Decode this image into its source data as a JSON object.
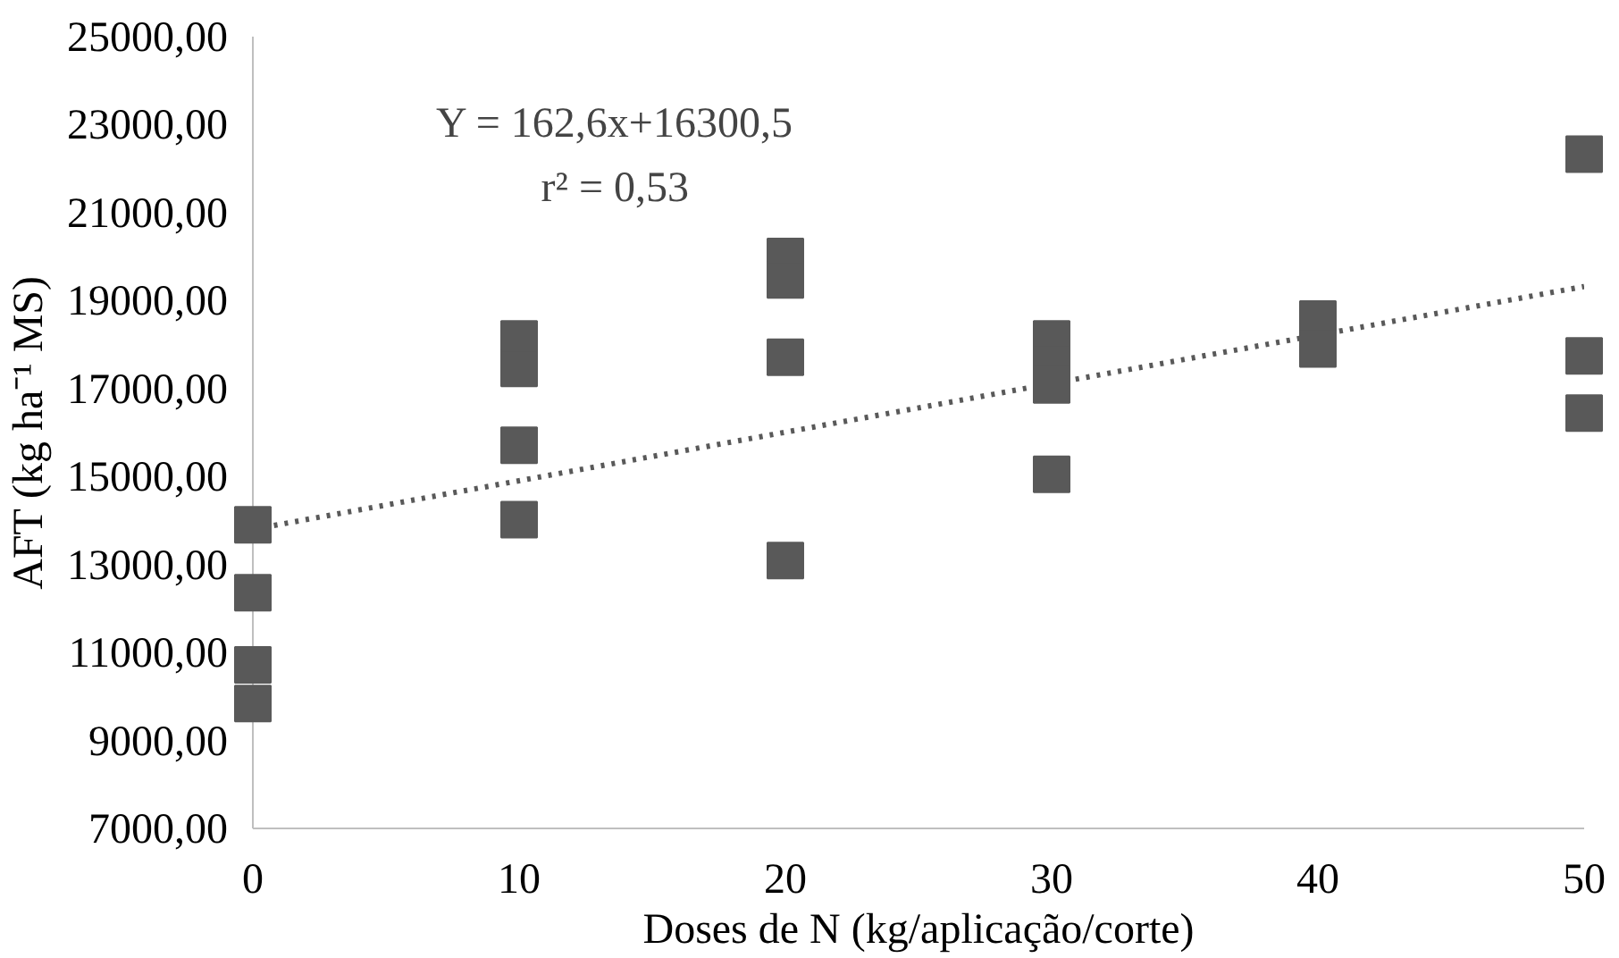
{
  "chart_data": {
    "type": "scatter",
    "xlabel": "Doses de N (kg/aplicação/corte)",
    "ylabel": "AFT (kg ha⁻¹ MS)",
    "annotations": [
      "Y = 162,6x+16300,5",
      "r² = 0,53"
    ],
    "xlim": [
      0,
      50
    ],
    "xticks": [
      0,
      10,
      20,
      30,
      40,
      50
    ],
    "ylim": [
      7000,
      25000
    ],
    "yticks": [
      {
        "value": 7000,
        "label": "7000,00"
      },
      {
        "value": 9000,
        "label": "9000,00"
      },
      {
        "value": 11000,
        "label": "11000,00"
      },
      {
        "value": 13000,
        "label": "13000,00"
      },
      {
        "value": 15000,
        "label": "15000,00"
      },
      {
        "value": 17000,
        "label": "17000,00"
      },
      {
        "value": 19000,
        "label": "19000,00"
      },
      {
        "value": 21000,
        "label": "21000,00"
      },
      {
        "value": 23000,
        "label": "23000,00"
      },
      {
        "value": 25000,
        "label": "25000,00"
      }
    ],
    "grid": false,
    "marker": "square",
    "series": [
      {
        "color": "#595959",
        "x": [
          0,
          0,
          0,
          0,
          10,
          10,
          10,
          10,
          20,
          20,
          20,
          20,
          30,
          30,
          30,
          30,
          40,
          40,
          50,
          50,
          50
        ],
        "values": [
          13900,
          12360,
          10720,
          9840,
          18130,
          17460,
          15710,
          14020,
          20000,
          19470,
          17710,
          13090,
          18130,
          17530,
          17080,
          15050,
          18580,
          17900,
          22330,
          17740,
          16440
        ]
      },
      {
        "type": "line",
        "color": "#595959",
        "line_style": "dotted",
        "marker": "none",
        "x": [
          0,
          50
        ],
        "values": [
          13800,
          19320
        ]
      }
    ]
  }
}
